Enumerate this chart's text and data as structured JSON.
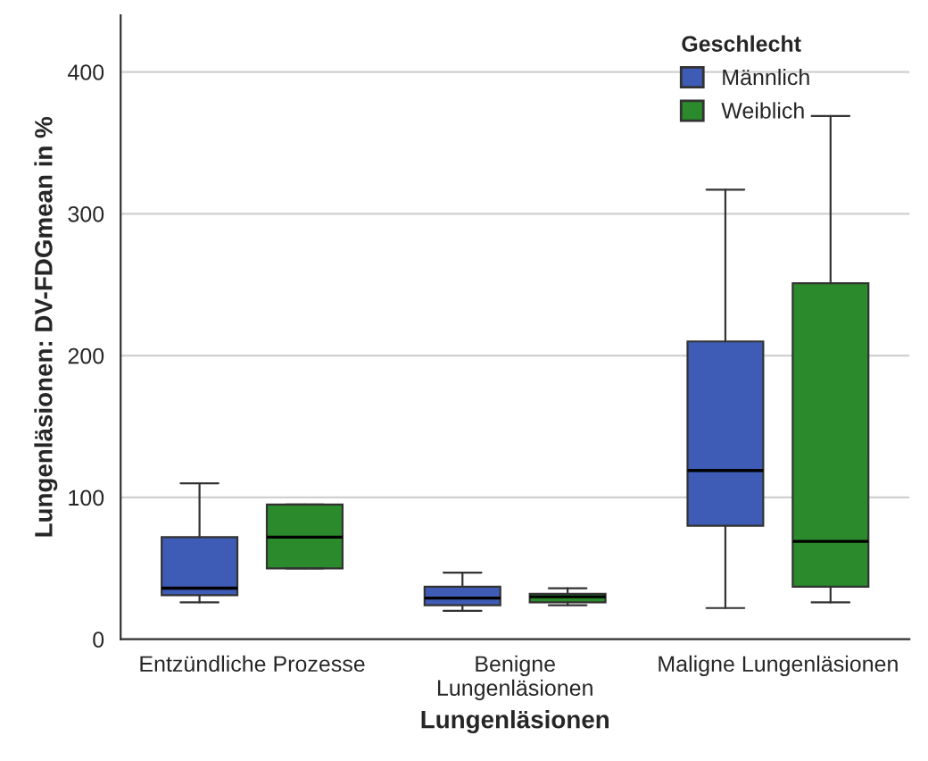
{
  "chart_data": {
    "type": "box",
    "xlabel": "Lungenläsionen",
    "ylabel": "Lungenläsionen: DV-FDGmean in %",
    "legend_title": "Geschlecht",
    "categories": [
      "Entzündliche Prozesse",
      "Benigne\nLungenläsionen",
      "Maligne Lungenläsionen"
    ],
    "series": [
      {
        "name": "Männlich",
        "color": "#3e5bb5",
        "boxes": [
          {
            "low": 26,
            "q1": 31,
            "median": 36,
            "q3": 72,
            "high": 110
          },
          {
            "low": 20,
            "q1": 24,
            "median": 29,
            "q3": 37,
            "high": 47
          },
          {
            "low": 22,
            "q1": 80,
            "median": 119,
            "q3": 210,
            "high": 317
          }
        ]
      },
      {
        "name": "Weiblich",
        "color": "#2b8a2b",
        "boxes": [
          {
            "low": 50,
            "q1": 50,
            "median": 72,
            "q3": 95,
            "high": 95
          },
          {
            "low": 24,
            "q1": 26,
            "median": 30,
            "q3": 32,
            "high": 36
          },
          {
            "low": 26,
            "q1": 37,
            "median": 69,
            "q3": 251,
            "high": 369
          }
        ]
      }
    ],
    "ylim": [
      0,
      440
    ],
    "yticks": [
      0,
      100,
      200,
      300,
      400
    ],
    "grid": "y",
    "legend": "top right"
  }
}
